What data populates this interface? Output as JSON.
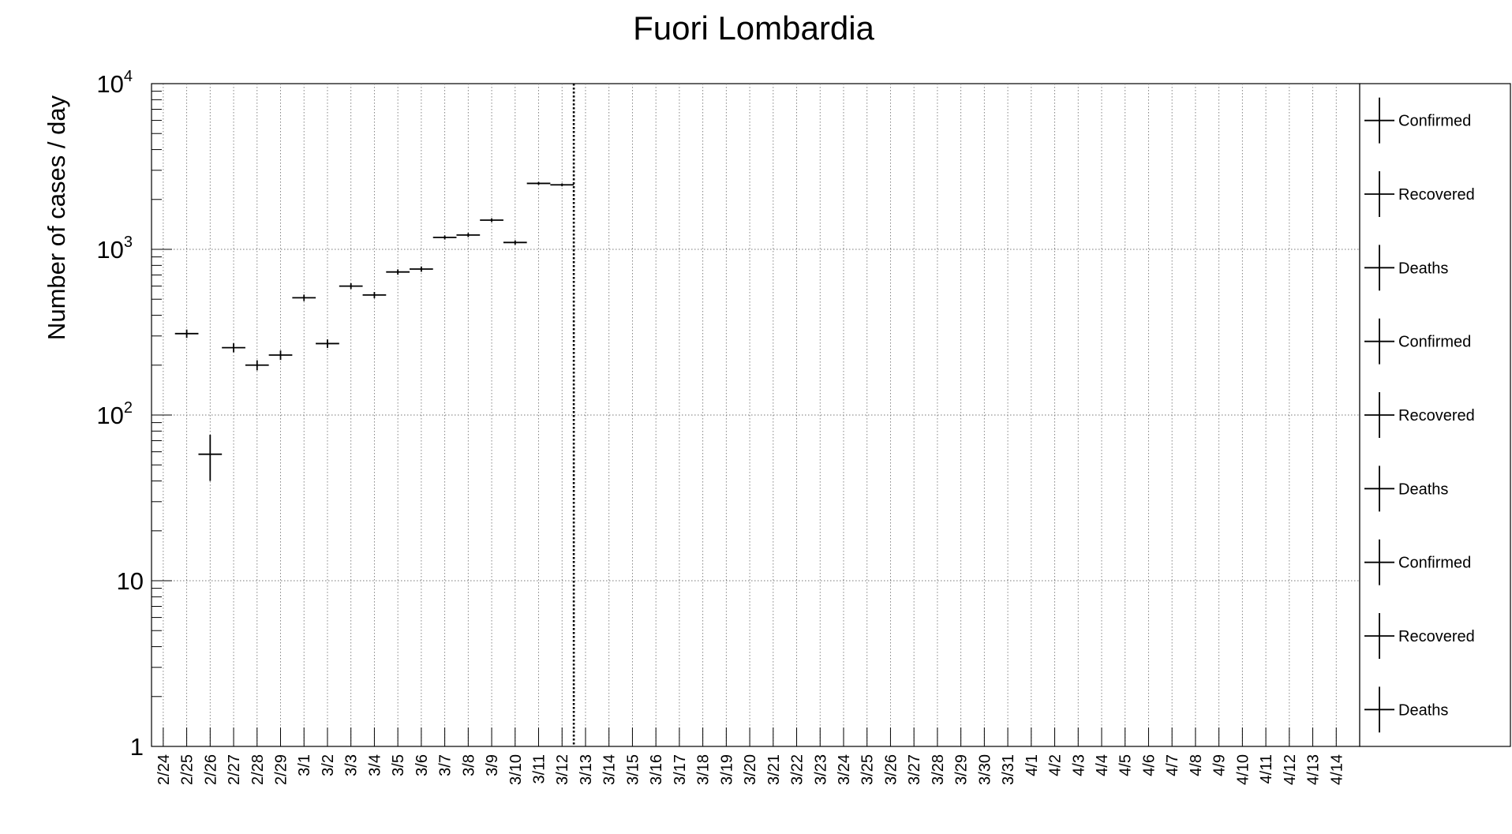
{
  "chart_data": {
    "type": "scatter",
    "title": "Fuori Lombardia",
    "ylabel": "Number of cases / day",
    "xlabel": "",
    "yscale": "log",
    "ylim": [
      1,
      10000
    ],
    "ytick_labels": [
      "1",
      "10",
      "10",
      "10",
      "10"
    ],
    "ytick_exponents": [
      "",
      "",
      "2",
      "3",
      "4"
    ],
    "categories": [
      "2/24",
      "2/25",
      "2/26",
      "2/27",
      "2/28",
      "2/29",
      "3/1",
      "3/2",
      "3/3",
      "3/4",
      "3/5",
      "3/6",
      "3/7",
      "3/8",
      "3/9",
      "3/10",
      "3/11",
      "3/12",
      "3/13",
      "3/14",
      "3/15",
      "3/16",
      "3/17",
      "3/18",
      "3/19",
      "3/20",
      "3/21",
      "3/22",
      "3/23",
      "3/24",
      "3/25",
      "3/26",
      "3/27",
      "3/28",
      "3/29",
      "3/30",
      "3/31",
      "4/1",
      "4/2",
      "4/3",
      "4/4",
      "4/5",
      "4/6",
      "4/7",
      "4/8",
      "4/9",
      "4/10",
      "4/11",
      "4/12",
      "4/13",
      "4/14"
    ],
    "grid": true,
    "legend_position": "right",
    "legend": [
      "Confirmed",
      "Recovered",
      "Deaths",
      "Confirmed",
      "Recovered",
      "Deaths",
      "Confirmed",
      "Recovered",
      "Deaths"
    ],
    "reference_line_after": "3/12",
    "series": [
      {
        "values": [
          null,
          310,
          58,
          255,
          200,
          230,
          510,
          270,
          600,
          530,
          730,
          760,
          1180,
          1220,
          1500,
          1100,
          2500,
          2450
        ],
        "errors": [
          null,
          18,
          18,
          16,
          14,
          15,
          23,
          16,
          24,
          23,
          27,
          28,
          34,
          35,
          39,
          33,
          50,
          49
        ]
      }
    ]
  }
}
